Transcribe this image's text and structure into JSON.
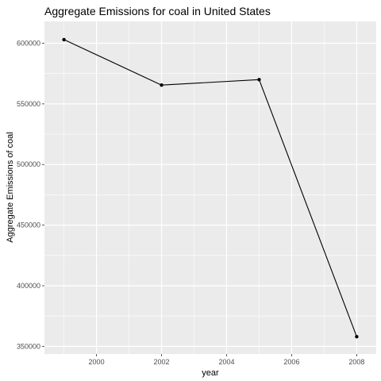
{
  "chart_data": {
    "type": "line",
    "title": "Aggregate Emissions for coal in United States",
    "xlabel": "year",
    "ylabel": "Aggregate Emissions of coal",
    "x": [
      1999,
      2002,
      2005,
      2008
    ],
    "series": [
      {
        "values": [
          603000,
          565500,
          570000,
          358000
        ]
      }
    ],
    "xlim": [
      1998.4,
      2008.6
    ],
    "ylim": [
      343700,
      618000
    ],
    "x_ticks": [
      2000,
      2002,
      2004,
      2006,
      2008
    ],
    "x_tick_labels": [
      "2000",
      "2002",
      "2004",
      "2006",
      "2008"
    ],
    "y_ticks": [
      350000,
      400000,
      450000,
      500000,
      550000,
      600000
    ],
    "y_tick_labels": [
      "350000",
      "400000",
      "450000",
      "500000",
      "550000",
      "600000"
    ],
    "grid": true,
    "legend": "none",
    "colors": {
      "panel_background": "#ebebeb",
      "grid_major": "#ffffff",
      "line": "#000000",
      "point": "#000000",
      "tick_label": "#4d4d4d"
    }
  }
}
